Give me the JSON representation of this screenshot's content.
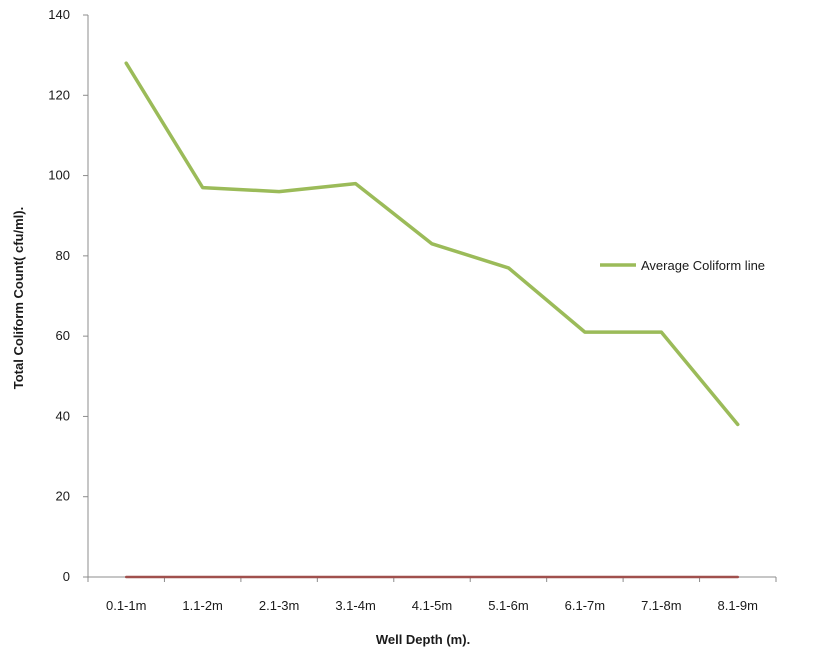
{
  "chart_data": {
    "type": "line",
    "title": "",
    "xlabel": "Well Depth (m).",
    "ylabel": "Total Coliform Count(  cfu/ml).",
    "categories": [
      "0.1-1m",
      "1.1-2m",
      "2.1-3m",
      "3.1-4m",
      "4.1-5m",
      "5.1-6m",
      "6.1-7m",
      "7.1-8m",
      "8.1-9m"
    ],
    "ylim": [
      0,
      140
    ],
    "yticks": [
      0,
      20,
      40,
      60,
      80,
      100,
      120,
      140
    ],
    "grid": false,
    "legend_position": "right",
    "series": [
      {
        "name": "Average Coliform line",
        "color": "#9bbb59",
        "values": [
          128,
          97,
          96,
          98,
          83,
          77,
          61,
          61,
          38
        ],
        "show_in_legend": true
      },
      {
        "name": "",
        "color": "#a0504d",
        "values": [
          0,
          0,
          0,
          0,
          0,
          0,
          0,
          0,
          0
        ],
        "show_in_legend": false
      }
    ]
  }
}
